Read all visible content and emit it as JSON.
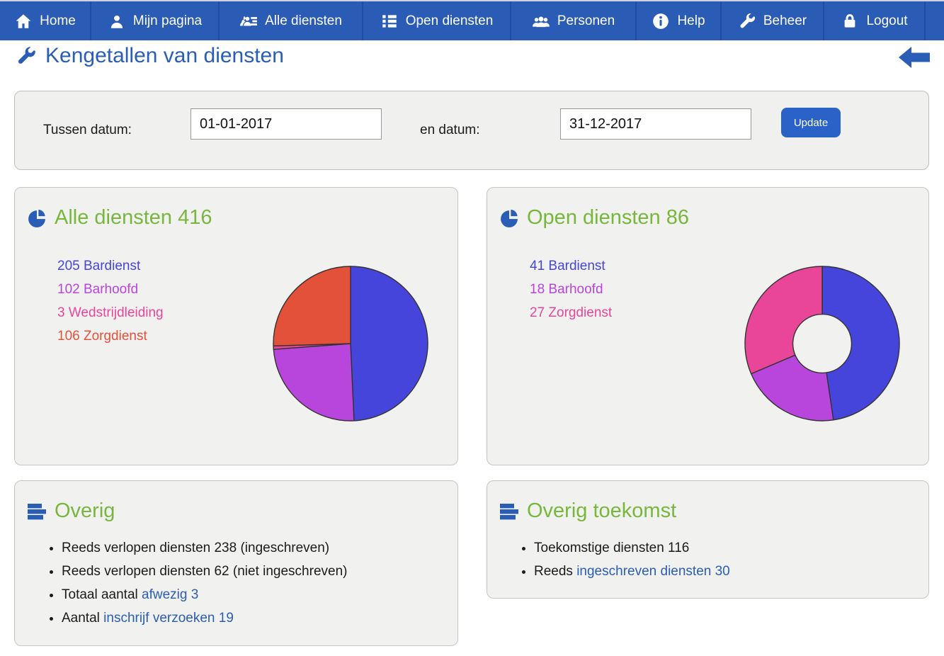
{
  "nav": {
    "items": [
      {
        "label": "Home",
        "icon": "home-icon"
      },
      {
        "label": "Mijn pagina",
        "icon": "user-icon"
      },
      {
        "label": "Alle diensten",
        "icon": "user-list-icon"
      },
      {
        "label": "Open diensten",
        "icon": "list-icon"
      },
      {
        "label": "Personen",
        "icon": "users-icon"
      },
      {
        "label": "Help",
        "icon": "info-icon"
      },
      {
        "label": "Beheer",
        "icon": "wrench-icon"
      },
      {
        "label": "Logout",
        "icon": "lock-icon"
      }
    ]
  },
  "page": {
    "title": "Kengetallen van diensten",
    "title_icon": "wrench-icon",
    "back_icon": "back-arrow-icon"
  },
  "filter": {
    "label_from": "Tussen datum:",
    "from_value": "01-01-2017",
    "label_to": "en datum:",
    "to_value": "31-12-2017",
    "update_label": "Update"
  },
  "chart_data": [
    {
      "type": "pie",
      "title": "Alle diensten",
      "total": 416,
      "title_display": "Alle diensten 416",
      "categories": [
        "Bardienst",
        "Barhoofd",
        "Wedstrijdleiding",
        "Zorgdienst"
      ],
      "values": [
        205,
        102,
        3,
        106
      ],
      "colors": [
        "#4545dc",
        "#b845dc",
        "#ea4699",
        "#e4513b"
      ],
      "legend": [
        "205 Bardienst",
        "102 Barhoofd",
        "3 Wedstrijdleiding",
        "106 Zorgdienst"
      ],
      "legend_position": "left",
      "donut": false,
      "start_angle_deg": 0,
      "direction": "clockwise"
    },
    {
      "type": "pie",
      "title": "Open diensten",
      "total": 86,
      "title_display": "Open diensten 86",
      "categories": [
        "Bardienst",
        "Barhoofd",
        "Zorgdienst"
      ],
      "values": [
        41,
        18,
        27
      ],
      "colors": [
        "#4545dc",
        "#b845dc",
        "#ea4699"
      ],
      "legend": [
        "41 Bardienst",
        "18 Barhoofd",
        "27 Zorgdienst"
      ],
      "legend_position": "left",
      "donut": true,
      "inner_ratio": 0.38,
      "start_angle_deg": 0,
      "direction": "clockwise"
    }
  ],
  "overig": {
    "title": "Overig",
    "icon": "bars-icon",
    "items": [
      {
        "text": "Reeds verlopen diensten 238 (ingeschreven)",
        "link": ""
      },
      {
        "text": "Reeds verlopen diensten 62 (niet ingeschreven)",
        "link": ""
      },
      {
        "text": "Totaal aantal ",
        "link": "afwezig 3"
      },
      {
        "text": "Aantal ",
        "link": "inschrijf verzoeken 19"
      }
    ]
  },
  "overig_toekomst": {
    "title": "Overig toekomst",
    "icon": "bars-icon",
    "items": [
      {
        "text": "Toekomstige diensten 116",
        "link": ""
      },
      {
        "text": "Reeds ",
        "link": "ingeschreven diensten 30"
      }
    ]
  },
  "colors": {
    "nav_bg": "#2b5cb5",
    "accent_blue": "#2a5db5",
    "green_title": "#77b73d",
    "button_blue": "#2a62c8",
    "pie_outline": "#333333"
  }
}
